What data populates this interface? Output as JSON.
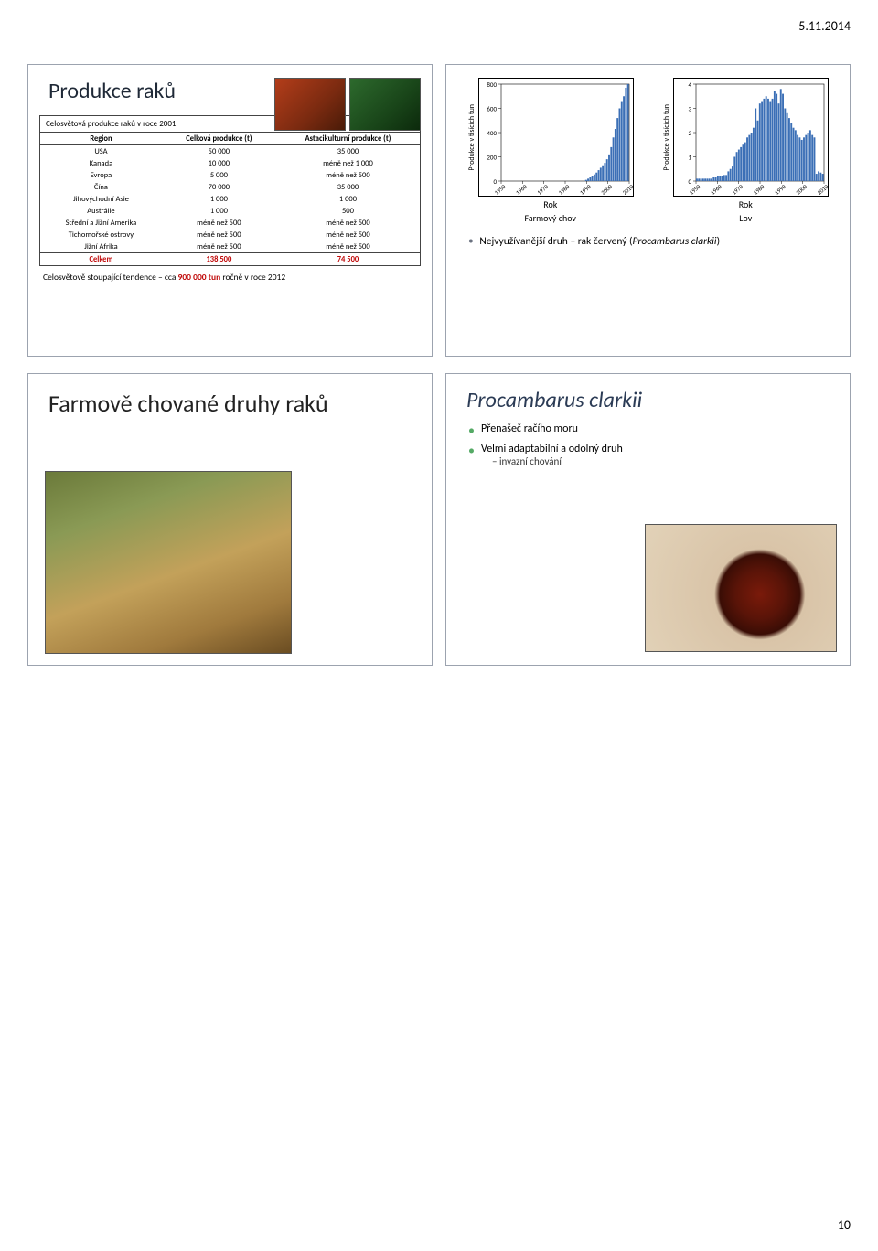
{
  "header_date": "5.11.2014",
  "page_number": "10",
  "slide1": {
    "title": "Produkce raků",
    "table_caption": "Celosvětová produkce raků v roce 2001",
    "columns": [
      "Region",
      "Celková produkce (t)",
      "Astacikulturní produkce (t)"
    ],
    "rows": [
      [
        "USA",
        "50 000",
        "35 000"
      ],
      [
        "Kanada",
        "10 000",
        "méně než 1 000"
      ],
      [
        "Evropa",
        "5 000",
        "méně než 500"
      ],
      [
        "Čína",
        "70 000",
        "35 000"
      ],
      [
        "Jihovýchodní Asie",
        "1 000",
        "1 000"
      ],
      [
        "Austrálie",
        "1 000",
        "500"
      ],
      [
        "Střední a Jižní Amerika",
        "méně než 500",
        "méně než 500"
      ],
      [
        "Tichomořské ostrovy",
        "méně než 500",
        "méně než 500"
      ],
      [
        "Jižní Afrika",
        "méně než 500",
        "méně než 500"
      ]
    ],
    "total_row": [
      "Celkem",
      "138 500",
      "74 500"
    ],
    "footnote_pre": "Celosvětově stoupající tendence – cca ",
    "footnote_red": "900 000 tun",
    "footnote_post": " ročně v roce 2012"
  },
  "slide2": {
    "chart1": {
      "ylabel": "Produkce v tisících tun",
      "xlabel": "Rok",
      "sub": "Farmový chov",
      "ylim": [
        0,
        800
      ],
      "yticks": [
        0,
        200,
        400,
        600,
        800
      ],
      "xticks": [
        "1950",
        "1960",
        "1970",
        "1980",
        "1990",
        "2000",
        "2010"
      ],
      "values": [
        0,
        0,
        0,
        0,
        0,
        0,
        0,
        0,
        0,
        0,
        0,
        0,
        0,
        0,
        0,
        0,
        0,
        0,
        0,
        0,
        0,
        0,
        0,
        0,
        0,
        0,
        0,
        0,
        0,
        0,
        0,
        0,
        0,
        0,
        0,
        0,
        0,
        0,
        0,
        0,
        10,
        20,
        30,
        40,
        55,
        70,
        90,
        110,
        130,
        150,
        180,
        220,
        280,
        360,
        430,
        520,
        600,
        660,
        700,
        770,
        800
      ],
      "bar_color": "#3b6fb6",
      "grid_color": "#9aa0a6",
      "background": "#ffffff"
    },
    "chart2": {
      "ylabel": "Produkce v tisících tun",
      "xlabel": "Rok",
      "sub": "Lov",
      "ylim": [
        0,
        4
      ],
      "yticks": [
        0,
        1,
        2,
        3,
        4
      ],
      "xticks": [
        "1950",
        "1960",
        "1970",
        "1980",
        "1990",
        "2000",
        "2010"
      ],
      "values": [
        0.1,
        0.1,
        0.1,
        0.1,
        0.1,
        0.1,
        0.1,
        0.1,
        0.15,
        0.15,
        0.2,
        0.2,
        0.2,
        0.25,
        0.25,
        0.4,
        0.5,
        0.6,
        1.0,
        1.2,
        1.3,
        1.4,
        1.5,
        1.6,
        1.8,
        1.9,
        2.0,
        2.2,
        3.0,
        2.5,
        3.2,
        3.3,
        3.4,
        3.5,
        3.4,
        3.3,
        3.4,
        3.7,
        3.6,
        3.2,
        3.8,
        3.6,
        3.0,
        2.8,
        2.6,
        2.4,
        2.2,
        2.1,
        1.9,
        1.8,
        1.7,
        1.8,
        1.9,
        2.0,
        2.1,
        1.9,
        1.8,
        0.3,
        0.4,
        0.35,
        0.3
      ],
      "bar_color": "#3b6fb6",
      "grid_color": "#9aa0a6",
      "background": "#ffffff"
    },
    "bullet": "Nejvyužívanější druh – rak červený (Procambarus clarkii)"
  },
  "slide3": {
    "title": "Farmově chované druhy raků"
  },
  "slide4": {
    "title": "Procambarus clarkii",
    "bullets": [
      "Přenašeč račího moru",
      "Velmi adaptabilní a odolný druh"
    ],
    "sub_bullet": "– invazní chování"
  }
}
